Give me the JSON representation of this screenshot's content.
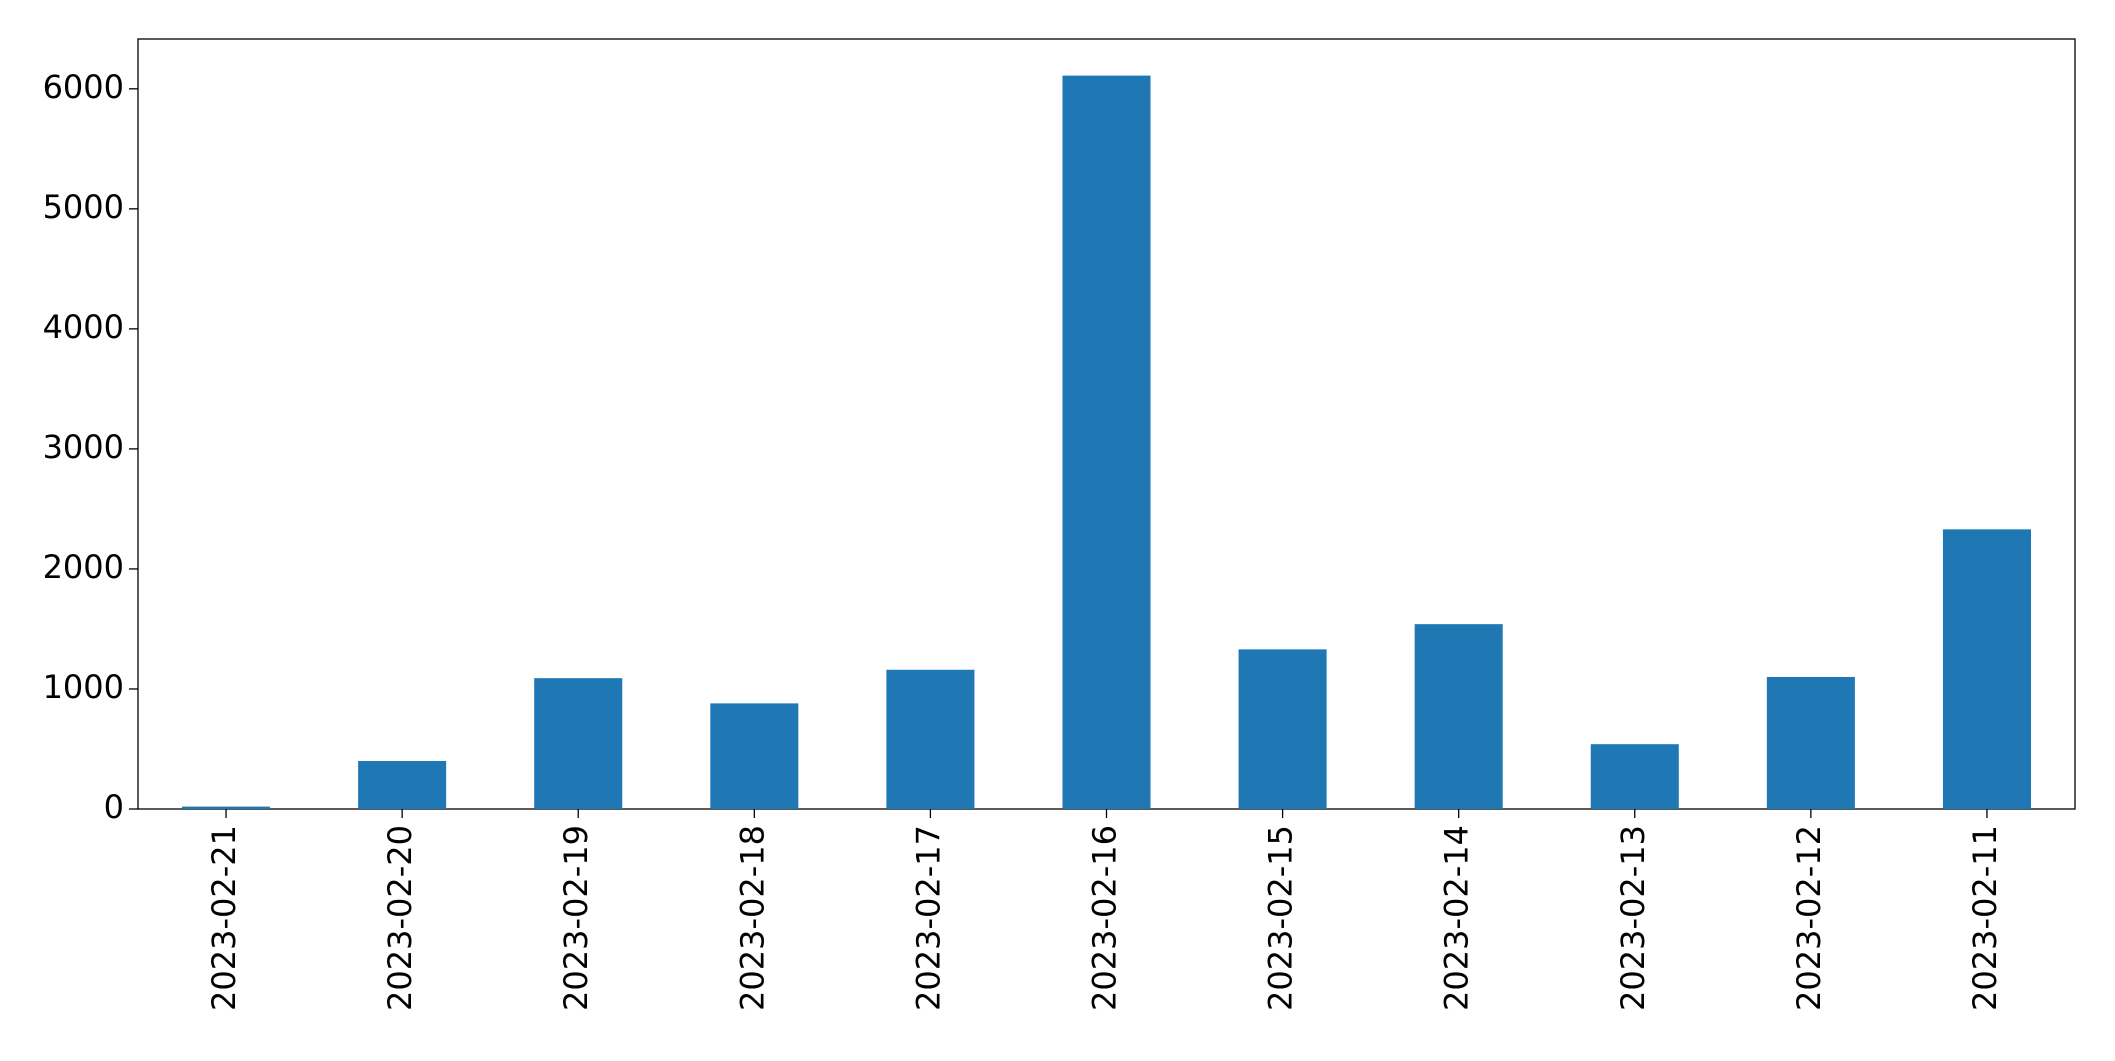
{
  "chart_data": {
    "type": "bar",
    "categories": [
      "2023-02-21",
      "2023-02-20",
      "2023-02-19",
      "2023-02-18",
      "2023-02-17",
      "2023-02-16",
      "2023-02-15",
      "2023-02-14",
      "2023-02-13",
      "2023-02-12",
      "2023-02-11"
    ],
    "values": [
      20,
      400,
      1090,
      880,
      1160,
      6110,
      1330,
      1540,
      540,
      1100,
      2330
    ],
    "color": "#1f77b4",
    "ylim": [
      0,
      6415
    ],
    "yticks": [
      0,
      1000,
      2000,
      3000,
      4000,
      5000,
      6000
    ],
    "grid": false
  }
}
